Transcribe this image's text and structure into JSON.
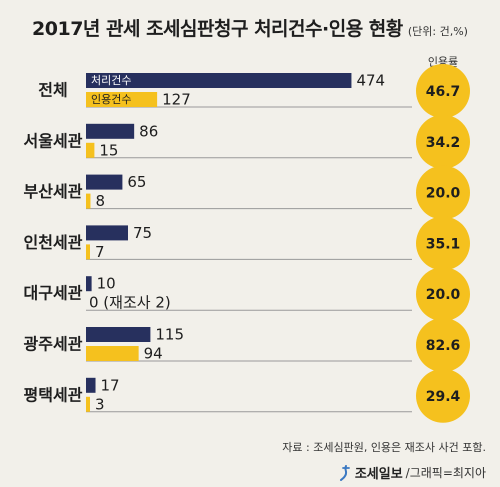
{
  "title": "2017년 관세 조세심판청구 처리건수·인용 현황",
  "unit": "(단위: 건,%)",
  "rate_header": "인용률",
  "source": "자료 : 조세심판원, 인용은 재조사 사건 포함.",
  "brand": {
    "name": "조세일보",
    "credit": "/그래픽=최지아"
  },
  "colors": {
    "processed": "#27305e",
    "accepted": "#f5c11e",
    "circle": "#f5c11e",
    "baseline": "#999999"
  },
  "chart_data": {
    "type": "bar",
    "orientation": "horizontal",
    "categories": [
      "전체",
      "서울세관",
      "부산세관",
      "인천세관",
      "대구세관",
      "광주세관",
      "평택세관"
    ],
    "series": [
      {
        "name": "처리건수",
        "values": [
          474,
          86,
          65,
          75,
          10,
          115,
          17
        ]
      },
      {
        "name": "인용건수",
        "values": [
          127,
          15,
          8,
          7,
          0,
          94,
          3
        ]
      }
    ],
    "value_labels": {
      "processed": [
        "474",
        "86",
        "65",
        "75",
        "10",
        "115",
        "17"
      ],
      "accepted": [
        "127",
        "15",
        "8",
        "7",
        "0 (재조사 2)",
        "94",
        "3"
      ]
    },
    "rates": [
      "46.7",
      "34.2",
      "20.0",
      "35.1",
      "20.0",
      "82.6",
      "29.4"
    ]
  }
}
